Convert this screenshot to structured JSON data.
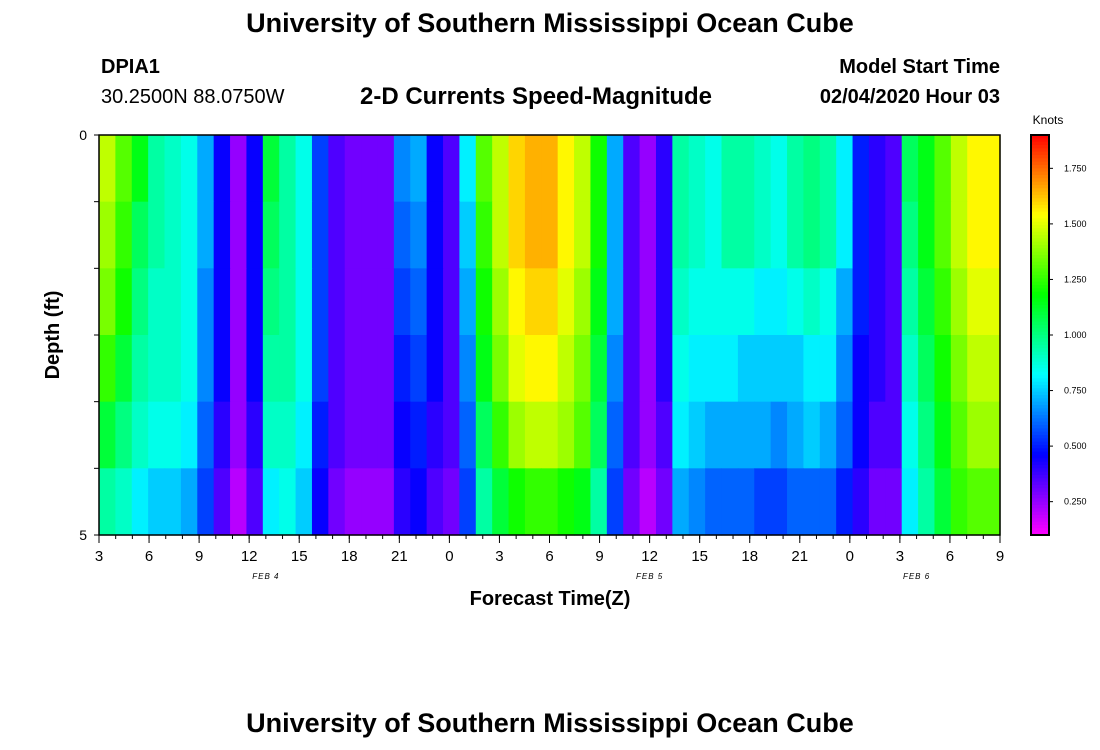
{
  "header": {
    "title": "University of Southern Mississippi Ocean Cube",
    "station_id": "DPIA1",
    "location": "30.2500N 88.0750W",
    "subtitle": "2-D Currents Speed-Magnitude",
    "model_start_label": "Model Start Time",
    "model_start_value": "02/04/2020 Hour 03"
  },
  "footer": {
    "title": "University of Southern Mississippi Ocean Cube"
  },
  "colors": {
    "background": "#ffffff",
    "text": "#000000"
  },
  "chart_data": {
    "type": "heatmap",
    "title": "2-D Currents Speed-Magnitude",
    "xlabel": "Forecast Time(Z)",
    "ylabel": "Depth (ft)",
    "x_hours": [
      3,
      4,
      5,
      6,
      7,
      8,
      9,
      10,
      11,
      12,
      13,
      14,
      15,
      16,
      17,
      18,
      19,
      20,
      21,
      22,
      23,
      24,
      25,
      26,
      27,
      28,
      29,
      30,
      31,
      32,
      33,
      34,
      35,
      36,
      37,
      38,
      39,
      40,
      41,
      42,
      43,
      44,
      45,
      46,
      47,
      48,
      49,
      50,
      51,
      52,
      53,
      54,
      55,
      56,
      57
    ],
    "depth_ft": [
      0,
      1,
      2,
      3,
      4,
      5
    ],
    "ylim": [
      0,
      5
    ],
    "y_tick_labels": [
      "0",
      "5"
    ],
    "x_tick_labels": [
      "3",
      "6",
      "9",
      "12",
      "15",
      "18",
      "21",
      "0",
      "3",
      "6",
      "9",
      "12",
      "15",
      "18",
      "21",
      "0",
      "3",
      "6",
      "9"
    ],
    "day_labels": [
      {
        "label": "FEB 4",
        "x_hour": 13
      },
      {
        "label": "FEB 5",
        "x_hour": 36
      },
      {
        "label": "FEB 6",
        "x_hour": 52
      }
    ],
    "colorbar": {
      "label": "Knots",
      "min": 0.1,
      "max": 1.9,
      "ticks": [
        "0.250",
        "0.500",
        "0.750",
        "1.000",
        "1.250",
        "1.500",
        "1.750"
      ]
    },
    "speed_by_depth_band": [
      [
        1.45,
        1.3,
        1.15,
        0.95,
        0.9,
        0.85,
        0.7,
        0.45,
        0.25,
        0.45,
        1.1,
        0.95,
        0.85,
        0.55,
        0.35,
        0.3,
        0.3,
        0.3,
        0.65,
        0.7,
        0.45,
        0.35,
        0.8,
        1.3,
        1.45,
        1.6,
        1.65,
        1.65,
        1.55,
        1.45,
        1.2,
        0.7,
        0.35,
        0.25,
        0.4,
        0.95,
        0.9,
        0.85,
        0.95,
        0.95,
        0.9,
        0.85,
        0.95,
        1.0,
        0.95,
        0.8,
        0.5,
        0.4,
        0.35,
        1.05,
        1.15,
        1.3,
        1.45,
        1.55,
        1.55
      ],
      [
        1.4,
        1.25,
        1.05,
        0.95,
        0.9,
        0.85,
        0.7,
        0.45,
        0.25,
        0.45,
        1.05,
        0.95,
        0.85,
        0.55,
        0.35,
        0.3,
        0.3,
        0.3,
        0.6,
        0.65,
        0.45,
        0.35,
        0.75,
        1.25,
        1.45,
        1.6,
        1.65,
        1.65,
        1.55,
        1.45,
        1.2,
        0.7,
        0.35,
        0.25,
        0.4,
        0.95,
        0.9,
        0.85,
        0.95,
        0.95,
        0.9,
        0.85,
        0.95,
        1.0,
        0.95,
        0.8,
        0.5,
        0.4,
        0.35,
        1.0,
        1.15,
        1.3,
        1.45,
        1.55,
        1.55
      ],
      [
        1.35,
        1.2,
        1.0,
        0.9,
        0.9,
        0.85,
        0.65,
        0.45,
        0.25,
        0.45,
        1.0,
        0.95,
        0.85,
        0.55,
        0.35,
        0.3,
        0.3,
        0.3,
        0.55,
        0.6,
        0.45,
        0.35,
        0.7,
        1.2,
        1.4,
        1.55,
        1.6,
        1.6,
        1.5,
        1.4,
        1.15,
        0.7,
        0.35,
        0.25,
        0.4,
        0.9,
        0.85,
        0.85,
        0.85,
        0.85,
        0.8,
        0.8,
        0.85,
        0.9,
        0.85,
        0.7,
        0.5,
        0.4,
        0.35,
        0.95,
        1.1,
        1.25,
        1.4,
        1.5,
        1.5
      ],
      [
        1.25,
        1.1,
        0.95,
        0.9,
        0.9,
        0.85,
        0.65,
        0.45,
        0.25,
        0.45,
        0.95,
        0.95,
        0.85,
        0.55,
        0.35,
        0.3,
        0.3,
        0.3,
        0.5,
        0.55,
        0.45,
        0.35,
        0.65,
        1.15,
        1.35,
        1.5,
        1.55,
        1.55,
        1.45,
        1.35,
        1.1,
        0.65,
        0.35,
        0.25,
        0.4,
        0.85,
        0.8,
        0.8,
        0.8,
        0.75,
        0.75,
        0.75,
        0.75,
        0.8,
        0.8,
        0.65,
        0.45,
        0.4,
        0.35,
        0.9,
        1.05,
        1.2,
        1.35,
        1.45,
        1.45
      ],
      [
        1.1,
        1.0,
        0.9,
        0.85,
        0.85,
        0.8,
        0.6,
        0.4,
        0.25,
        0.4,
        0.9,
        0.9,
        0.8,
        0.5,
        0.35,
        0.3,
        0.3,
        0.3,
        0.45,
        0.5,
        0.4,
        0.35,
        0.6,
        1.05,
        1.25,
        1.4,
        1.45,
        1.45,
        1.4,
        1.3,
        1.05,
        0.6,
        0.35,
        0.25,
        0.35,
        0.8,
        0.75,
        0.7,
        0.7,
        0.7,
        0.7,
        0.65,
        0.7,
        0.75,
        0.7,
        0.6,
        0.45,
        0.35,
        0.35,
        0.85,
        1.0,
        1.15,
        1.3,
        1.4,
        1.4
      ],
      [
        0.95,
        0.9,
        0.8,
        0.75,
        0.75,
        0.7,
        0.55,
        0.35,
        0.2,
        0.35,
        0.8,
        0.85,
        0.75,
        0.45,
        0.3,
        0.25,
        0.25,
        0.25,
        0.4,
        0.45,
        0.35,
        0.3,
        0.55,
        0.95,
        1.1,
        1.2,
        1.25,
        1.25,
        1.2,
        1.15,
        0.95,
        0.55,
        0.3,
        0.2,
        0.3,
        0.7,
        0.65,
        0.6,
        0.6,
        0.6,
        0.55,
        0.55,
        0.6,
        0.6,
        0.6,
        0.5,
        0.4,
        0.3,
        0.3,
        0.8,
        0.95,
        1.1,
        1.25,
        1.3,
        1.3
      ]
    ]
  }
}
